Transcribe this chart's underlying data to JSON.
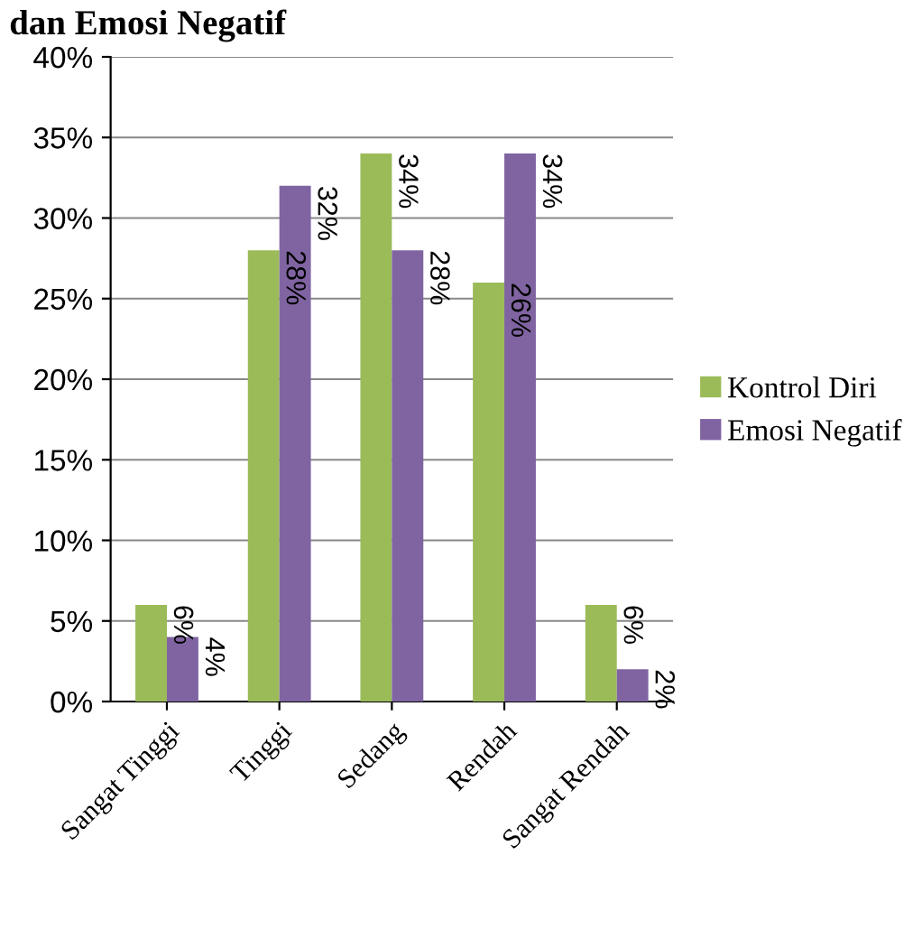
{
  "chart_data": {
    "type": "bar",
    "title": "dan Emosi Negatif",
    "categories": [
      "Sangat Tinggi",
      "Tinggi",
      "Sedang",
      "Rendah",
      "Sangat Rendah"
    ],
    "series": [
      {
        "name": "Kontrol Diri",
        "color": "#9bbb59",
        "values": [
          6,
          28,
          34,
          26,
          6
        ],
        "value_labels": [
          "6%",
          "28%",
          "34%",
          "26%",
          "6%"
        ]
      },
      {
        "name": "Emosi Negatif",
        "color": "#8064a2",
        "values": [
          4,
          32,
          28,
          34,
          2
        ],
        "value_labels": [
          "4%",
          "32%",
          "28%",
          "34%",
          "2%"
        ]
      }
    ],
    "ylim": [
      0,
      40
    ],
    "yticks": [
      {
        "value": 0,
        "label": "0%"
      },
      {
        "value": 5,
        "label": "5%"
      },
      {
        "value": 10,
        "label": "10%"
      },
      {
        "value": 15,
        "label": "15%"
      },
      {
        "value": 20,
        "label": "20%"
      },
      {
        "value": 25,
        "label": "25%"
      },
      {
        "value": 30,
        "label": "30%"
      },
      {
        "value": 35,
        "label": "35%"
      },
      {
        "value": 40,
        "label": "40%"
      }
    ],
    "grid": "y",
    "legend": "right"
  }
}
